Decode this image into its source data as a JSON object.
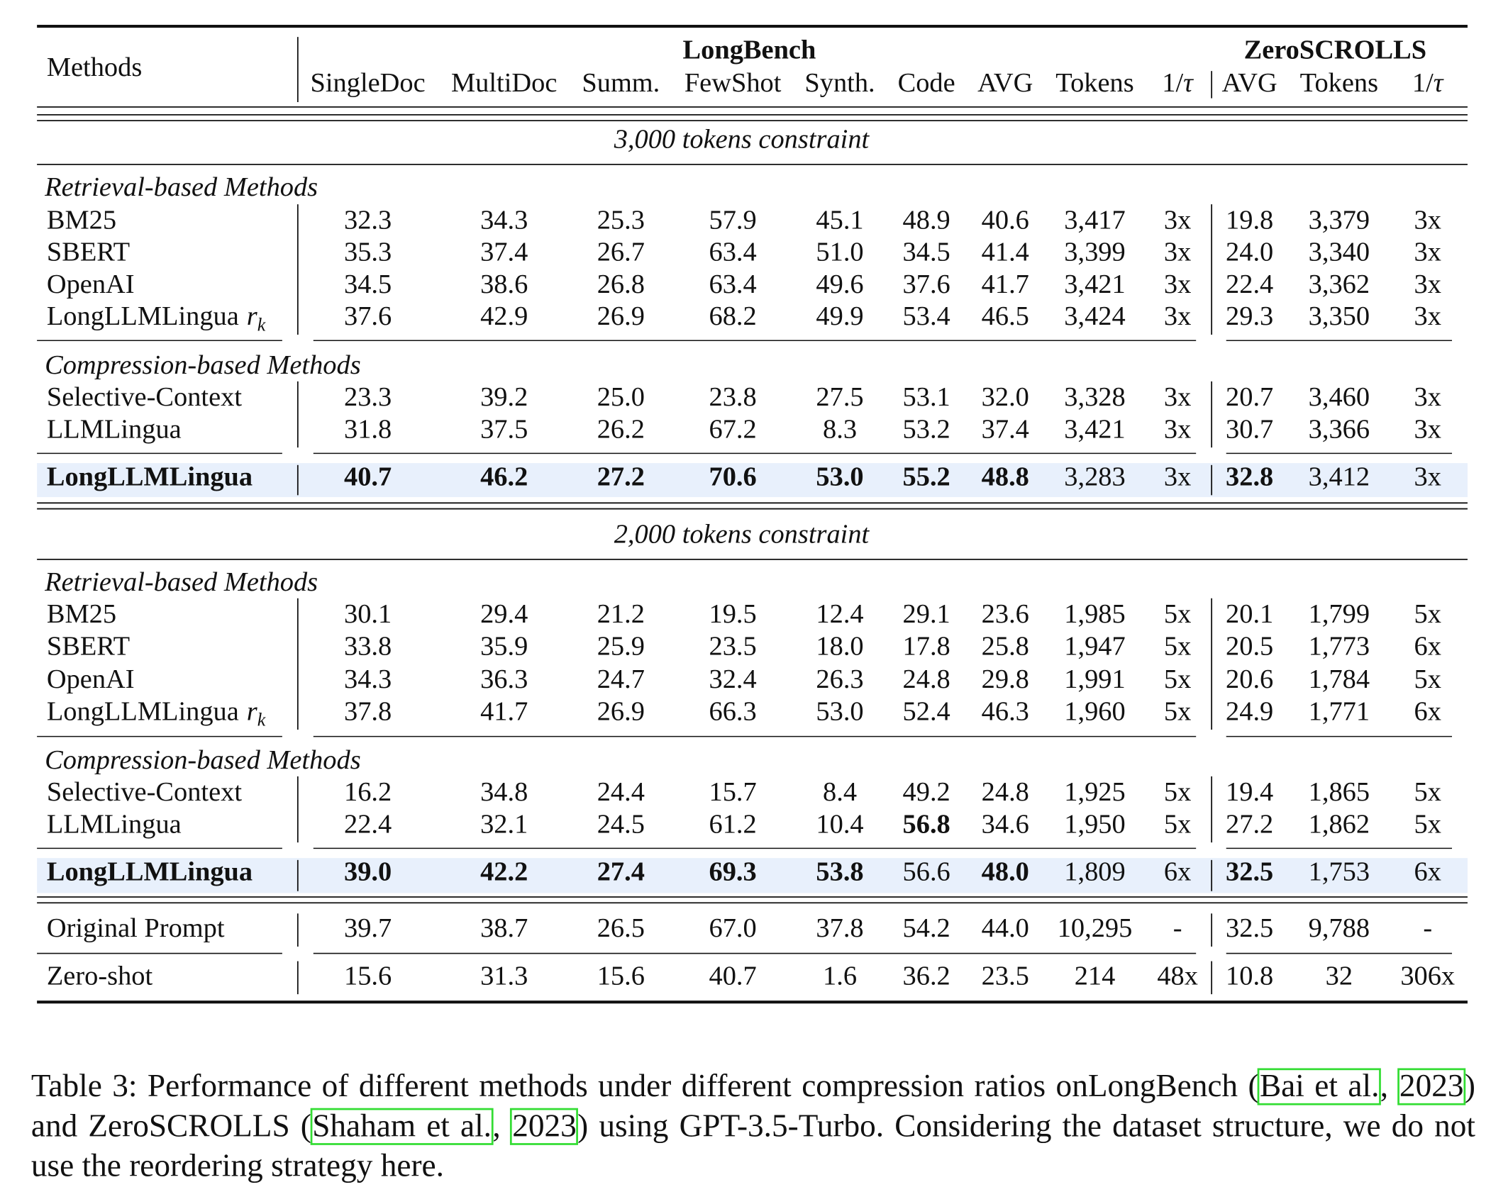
{
  "header": {
    "methods": "Methods",
    "longbench": "LongBench",
    "zeroscrolls": "ZeroSCROLLS",
    "lb_cols": [
      "SingleDoc",
      "MultiDoc",
      "Summ.",
      "FewShot",
      "Synth.",
      "Code",
      "AVG",
      "Tokens",
      "1/τ"
    ],
    "zs_cols": [
      "AVG",
      "Tokens",
      "1/τ"
    ]
  },
  "sections": [
    {
      "constraint": "3,000 tokens constraint",
      "groups": [
        {
          "label": "Retrieval-based Methods",
          "rows": [
            {
              "name": "BM25",
              "vals": [
                "32.3",
                "34.3",
                "25.3",
                "57.9",
                "45.1",
                "48.9",
                "40.6",
                "3,417",
                "3x",
                "19.8",
                "3,379",
                "3x"
              ],
              "bold": []
            },
            {
              "name": "SBERT",
              "vals": [
                "35.3",
                "37.4",
                "26.7",
                "63.4",
                "51.0",
                "34.5",
                "41.4",
                "3,399",
                "3x",
                "24.0",
                "3,340",
                "3x"
              ],
              "bold": []
            },
            {
              "name": "OpenAI",
              "vals": [
                "34.5",
                "38.6",
                "26.8",
                "63.4",
                "49.6",
                "37.6",
                "41.7",
                "3,421",
                "3x",
                "22.4",
                "3,362",
                "3x"
              ],
              "bold": []
            },
            {
              "name": "LongLLMLingua",
              "sub": "r",
              "subk": "k",
              "vals": [
                "37.6",
                "42.9",
                "26.9",
                "68.2",
                "49.9",
                "53.4",
                "46.5",
                "3,424",
                "3x",
                "29.3",
                "3,350",
                "3x"
              ],
              "bold": []
            }
          ]
        },
        {
          "label": "Compression-based Methods",
          "rows": [
            {
              "name": "Selective-Context",
              "vals": [
                "23.3",
                "39.2",
                "25.0",
                "23.8",
                "27.5",
                "53.1",
                "32.0",
                "3,328",
                "3x",
                "20.7",
                "3,460",
                "3x"
              ],
              "bold": []
            },
            {
              "name": "LLMLingua",
              "vals": [
                "31.8",
                "37.5",
                "26.2",
                "67.2",
                "8.3",
                "53.2",
                "37.4",
                "3,421",
                "3x",
                "30.7",
                "3,366",
                "3x"
              ],
              "bold": []
            }
          ]
        }
      ],
      "ours": {
        "name": "LongLLMLingua",
        "vals": [
          "40.7",
          "46.2",
          "27.2",
          "70.6",
          "53.0",
          "55.2",
          "48.8",
          "3,283",
          "3x",
          "32.8",
          "3,412",
          "3x"
        ],
        "bold": [
          0,
          1,
          2,
          3,
          4,
          5,
          6,
          9
        ]
      }
    },
    {
      "constraint": "2,000 tokens constraint",
      "groups": [
        {
          "label": "Retrieval-based Methods",
          "rows": [
            {
              "name": "BM25",
              "vals": [
                "30.1",
                "29.4",
                "21.2",
                "19.5",
                "12.4",
                "29.1",
                "23.6",
                "1,985",
                "5x",
                "20.1",
                "1,799",
                "5x"
              ],
              "bold": []
            },
            {
              "name": "SBERT",
              "vals": [
                "33.8",
                "35.9",
                "25.9",
                "23.5",
                "18.0",
                "17.8",
                "25.8",
                "1,947",
                "5x",
                "20.5",
                "1,773",
                "6x"
              ],
              "bold": []
            },
            {
              "name": "OpenAI",
              "vals": [
                "34.3",
                "36.3",
                "24.7",
                "32.4",
                "26.3",
                "24.8",
                "29.8",
                "1,991",
                "5x",
                "20.6",
                "1,784",
                "5x"
              ],
              "bold": []
            },
            {
              "name": "LongLLMLingua",
              "sub": "r",
              "subk": "k",
              "vals": [
                "37.8",
                "41.7",
                "26.9",
                "66.3",
                "53.0",
                "52.4",
                "46.3",
                "1,960",
                "5x",
                "24.9",
                "1,771",
                "6x"
              ],
              "bold": []
            }
          ]
        },
        {
          "label": "Compression-based Methods",
          "rows": [
            {
              "name": "Selective-Context",
              "vals": [
                "16.2",
                "34.8",
                "24.4",
                "15.7",
                "8.4",
                "49.2",
                "24.8",
                "1,925",
                "5x",
                "19.4",
                "1,865",
                "5x"
              ],
              "bold": []
            },
            {
              "name": "LLMLingua",
              "vals": [
                "22.4",
                "32.1",
                "24.5",
                "61.2",
                "10.4",
                "56.8",
                "34.6",
                "1,950",
                "5x",
                "27.2",
                "1,862",
                "5x"
              ],
              "bold": [
                5
              ]
            }
          ]
        }
      ],
      "ours": {
        "name": "LongLLMLingua",
        "vals": [
          "39.0",
          "42.2",
          "27.4",
          "69.3",
          "53.8",
          "56.6",
          "48.0",
          "1,809",
          "6x",
          "32.5",
          "1,753",
          "6x"
        ],
        "bold": [
          0,
          1,
          2,
          3,
          4,
          6,
          9
        ]
      }
    }
  ],
  "baselines": [
    {
      "name": "Original Prompt",
      "vals": [
        "39.7",
        "38.7",
        "26.5",
        "67.0",
        "37.8",
        "54.2",
        "44.0",
        "10,295",
        "-",
        "32.5",
        "9,788",
        "-"
      ]
    },
    {
      "name": "Zero-shot",
      "vals": [
        "15.6",
        "31.3",
        "15.6",
        "40.7",
        "1.6",
        "36.2",
        "23.5",
        "214",
        "48x",
        "10.8",
        "32",
        "306x"
      ]
    }
  ],
  "caption": {
    "t1": "Table 3: Performance of different methods under different compression ratios onLongBench (",
    "c1": "Bai et al.",
    "t2": ", ",
    "c2": "2023",
    "t3": ") and ZeroSCROLLS (",
    "c3": "Shaham et al.",
    "t4": ", ",
    "c4": "2023",
    "t5": ") using GPT-3.5-Turbo.  Considering the dataset structure, we do not use the reordering strategy here."
  },
  "colors": {
    "highlight": "#e8f0fc",
    "cite_box": "#33dd33"
  }
}
